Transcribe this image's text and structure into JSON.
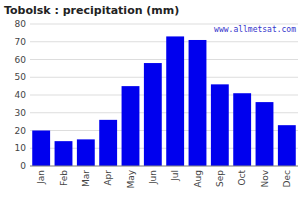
{
  "chart_data": {
    "type": "bar",
    "title": "Tobolsk : precipitation (mm)",
    "categories": [
      "Jan",
      "Feb",
      "Mar",
      "Apr",
      "May",
      "Jun",
      "Jul",
      "Aug",
      "Sep",
      "Oct",
      "Nov",
      "Dec"
    ],
    "values": [
      20,
      14,
      15,
      26,
      45,
      58,
      73,
      71,
      46,
      41,
      36,
      23
    ],
    "color": "#0000ee",
    "ylim": [
      0,
      80
    ],
    "yticks": [
      0,
      10,
      20,
      30,
      40,
      50,
      60,
      70,
      80
    ],
    "grid": true,
    "annotations": [
      "www.allmetsat.com"
    ]
  }
}
